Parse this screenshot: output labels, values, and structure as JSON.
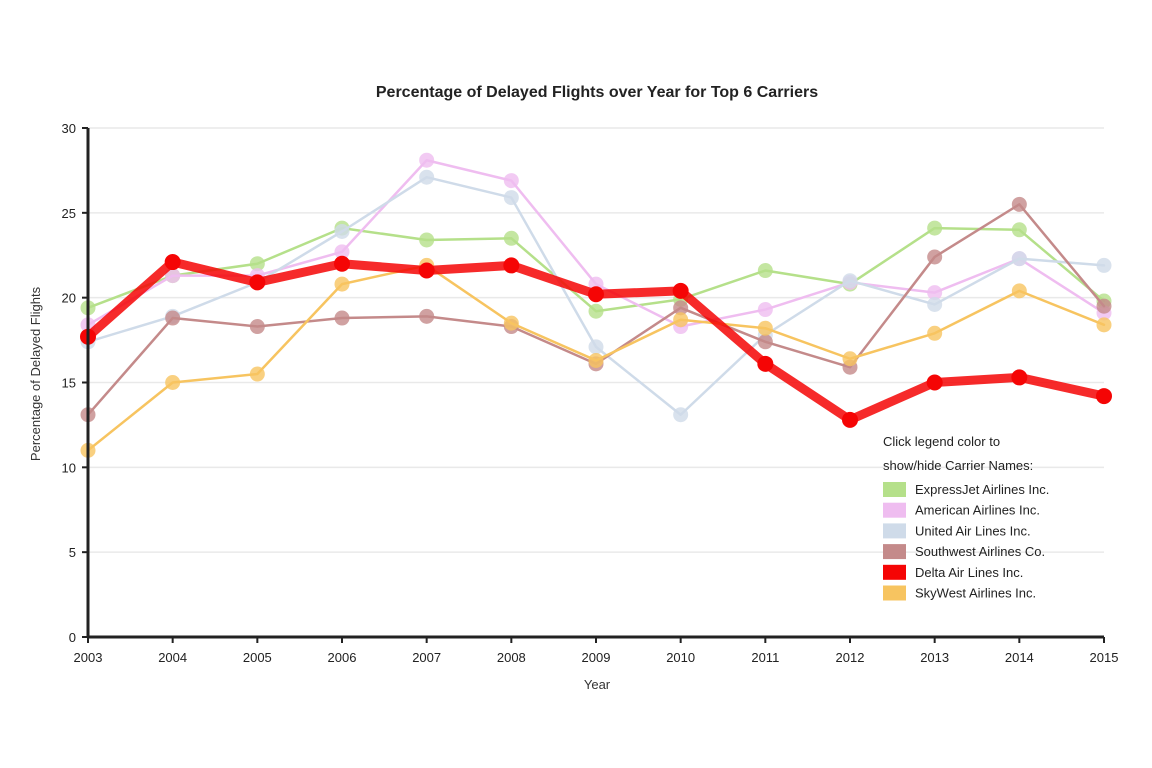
{
  "chart_data": {
    "type": "line",
    "title": "Percentage of Delayed Flights over Year for Top 6 Carriers",
    "xlabel": "Year",
    "ylabel": "Percentage of Delayed Flights",
    "x": [
      2003,
      2004,
      2005,
      2006,
      2007,
      2008,
      2009,
      2010,
      2011,
      2012,
      2013,
      2014,
      2015
    ],
    "ylim": [
      0,
      30
    ],
    "yticks": [
      0,
      5,
      10,
      15,
      20,
      25,
      30
    ],
    "grid": true,
    "legend_position": "bottom-right",
    "legend_intro": [
      "Click legend color to",
      "show/hide Carrier Names:"
    ],
    "series": [
      {
        "name": "ExpressJet Airlines Inc.",
        "color": "#b5e08a",
        "highlight": false,
        "values": [
          19.4,
          21.3,
          22.0,
          24.1,
          23.4,
          23.5,
          19.2,
          19.9,
          21.6,
          20.8,
          24.1,
          24.0,
          19.8
        ]
      },
      {
        "name": "American Airlines Inc.",
        "color": "#efbdf0",
        "highlight": false,
        "values": [
          18.4,
          21.3,
          21.3,
          22.7,
          28.1,
          26.9,
          20.8,
          18.3,
          19.3,
          20.9,
          20.3,
          22.3,
          19.1
        ]
      },
      {
        "name": "United Air Lines Inc.",
        "color": "#cfdbe9",
        "highlight": false,
        "values": [
          17.4,
          18.9,
          20.9,
          23.9,
          27.1,
          25.9,
          17.1,
          13.1,
          17.8,
          21.0,
          19.6,
          22.3,
          21.9
        ]
      },
      {
        "name": "Southwest Airlines Co.",
        "color": "#c48a8a",
        "highlight": false,
        "values": [
          13.1,
          18.8,
          18.3,
          18.8,
          18.9,
          18.3,
          16.1,
          19.4,
          17.4,
          15.9,
          22.4,
          25.5,
          19.5
        ]
      },
      {
        "name": "Delta Air Lines Inc.",
        "color": "#f50505",
        "highlight": true,
        "values": [
          17.7,
          22.1,
          20.9,
          22.0,
          21.6,
          21.9,
          20.2,
          20.4,
          16.1,
          12.8,
          15.0,
          15.3,
          14.2
        ]
      },
      {
        "name": "SkyWest Airlines Inc.",
        "color": "#f7c460",
        "highlight": false,
        "values": [
          11.0,
          15.0,
          15.5,
          20.8,
          21.9,
          18.5,
          16.3,
          18.7,
          18.2,
          16.4,
          17.9,
          20.4,
          18.4
        ]
      }
    ]
  }
}
